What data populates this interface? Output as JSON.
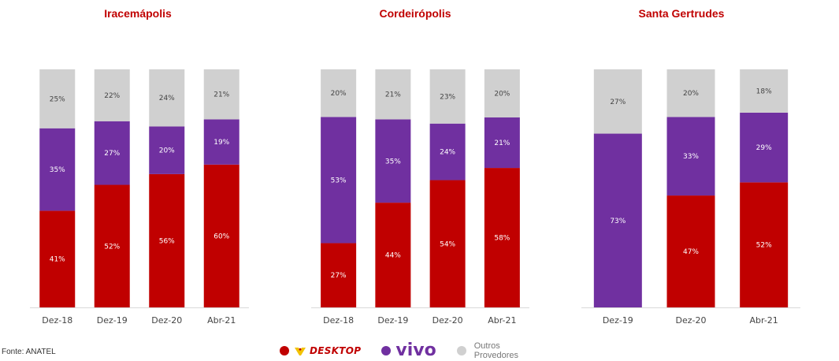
{
  "source": "Fonte: ANATEL",
  "legend": {
    "desktop": {
      "label": "DESKTOP",
      "color": "#c00000",
      "icon": "desktop-logo-icon"
    },
    "vivo": {
      "label": "vivo",
      "color": "#7030a0"
    },
    "outros": {
      "label": "Outros Provedores",
      "color": "#d0d0d0"
    }
  },
  "colors": {
    "desktop": "#c00000",
    "vivo": "#7030a0",
    "outros": "#d0d0d0",
    "title": "#c00000"
  },
  "chart_data": [
    {
      "type": "bar",
      "stacked": true,
      "normalized": true,
      "title": "Iracemápolis",
      "categories": [
        "Dez-18",
        "Dez-19",
        "Dez-20",
        "Abr-21"
      ],
      "series": [
        {
          "name": "DESKTOP",
          "labels": [
            "41%",
            "52%",
            "56%",
            "60%"
          ],
          "values": [
            41,
            52,
            56,
            60
          ]
        },
        {
          "name": "vivo",
          "labels": [
            "35%",
            "27%",
            "20%",
            "19%"
          ],
          "values": [
            35,
            27,
            20,
            19
          ]
        },
        {
          "name": "Outros Provedores",
          "labels": [
            "25%",
            "22%",
            "24%",
            "21%"
          ],
          "values": [
            25,
            22,
            24,
            21
          ]
        }
      ]
    },
    {
      "type": "bar",
      "stacked": true,
      "normalized": true,
      "title": "Cordeirópolis",
      "categories": [
        "Dez-18",
        "Dez-19",
        "Dez-20",
        "Abr-21"
      ],
      "series": [
        {
          "name": "DESKTOP",
          "labels": [
            "27%",
            "44%",
            "54%",
            "58%"
          ],
          "values": [
            27,
            44,
            54,
            58
          ]
        },
        {
          "name": "vivo",
          "labels": [
            "53%",
            "35%",
            "24%",
            "21%"
          ],
          "values": [
            53,
            35,
            24,
            21
          ]
        },
        {
          "name": "Outros Provedores",
          "labels": [
            "20%",
            "21%",
            "23%",
            "20%"
          ],
          "values": [
            20,
            21,
            23,
            20
          ]
        }
      ]
    },
    {
      "type": "bar",
      "stacked": true,
      "normalized": true,
      "title": "Santa Gertrudes",
      "categories": [
        "Dez-19",
        "Dez-20",
        "Abr-21"
      ],
      "series": [
        {
          "name": "DESKTOP",
          "labels": [
            "0%",
            "47%",
            "52%"
          ],
          "values": [
            0,
            47,
            52
          ]
        },
        {
          "name": "vivo",
          "labels": [
            "73%",
            "33%",
            "29%"
          ],
          "values": [
            73,
            33,
            29
          ]
        },
        {
          "name": "Outros Provedores",
          "labels": [
            "27%",
            "20%",
            "18%"
          ],
          "values": [
            27,
            20,
            18
          ]
        }
      ]
    }
  ]
}
